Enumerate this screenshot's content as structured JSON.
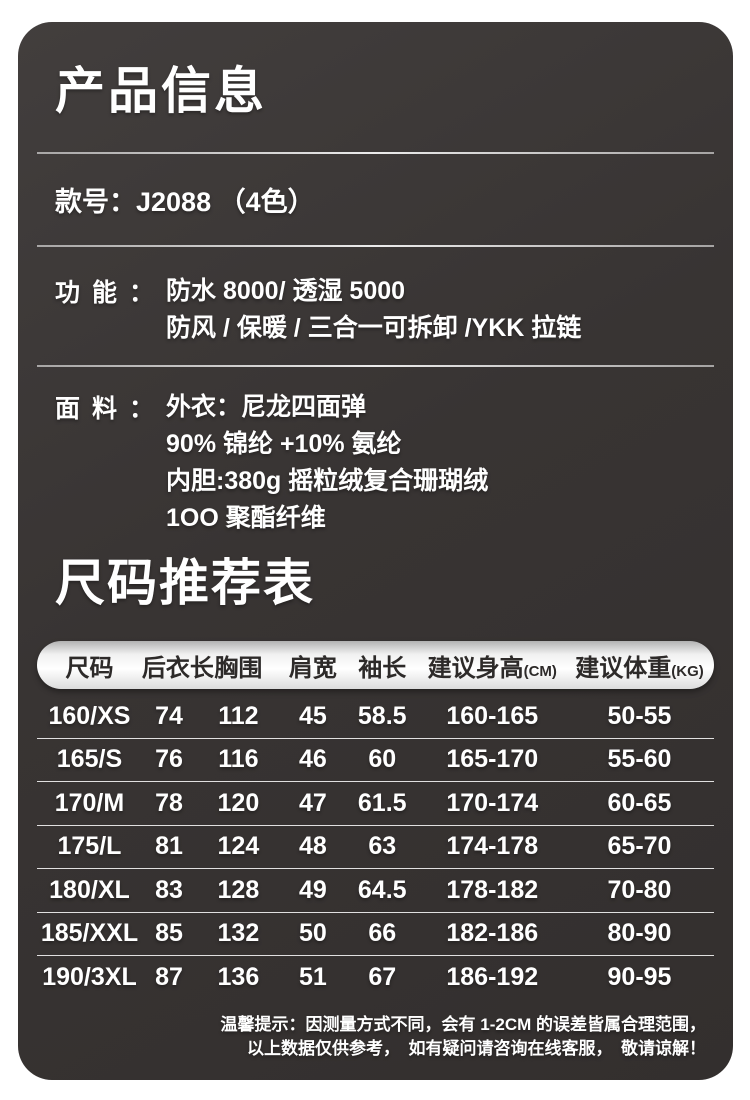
{
  "title": "产品信息",
  "style_line": "款号：J2088 （4色）",
  "features": {
    "label": "功能：",
    "lines": [
      "防水 8000/ 透湿 5000",
      "防风 / 保暖 / 三合一可拆卸 /YKK 拉链"
    ]
  },
  "fabric": {
    "label": "面料：",
    "lines": [
      "外衣：尼龙四面弹",
      "90% 锦纶 +10% 氨纶",
      "内胆:380g 摇粒绒复合珊瑚绒",
      "1OO 聚酯纤维"
    ]
  },
  "table": {
    "title": "尺码推荐表",
    "headers": [
      {
        "text": "尺码",
        "unit": ""
      },
      {
        "text": "后衣长",
        "unit": ""
      },
      {
        "text": "胸围",
        "unit": ""
      },
      {
        "text": "肩宽",
        "unit": ""
      },
      {
        "text": "袖长",
        "unit": ""
      },
      {
        "text": "建议身高",
        "unit": "(CM)"
      },
      {
        "text": "建议体重",
        "unit": "(KG)"
      }
    ],
    "rows": [
      [
        "160/XS",
        "74",
        "112",
        "45",
        "58.5",
        "160-165",
        "50-55"
      ],
      [
        "165/S",
        "76",
        "116",
        "46",
        "60",
        "165-170",
        "55-60"
      ],
      [
        "170/M",
        "78",
        "120",
        "47",
        "61.5",
        "170-174",
        "60-65"
      ],
      [
        "175/L",
        "81",
        "124",
        "48",
        "63",
        "174-178",
        "65-70"
      ],
      [
        "180/XL",
        "83",
        "128",
        "49",
        "64.5",
        "178-182",
        "70-80"
      ],
      [
        "185/XXL",
        "85",
        "132",
        "50",
        "66",
        "182-186",
        "80-90"
      ],
      [
        "190/3XL",
        "87",
        "136",
        "51",
        "67",
        "186-192",
        "90-95"
      ]
    ]
  },
  "note": {
    "lines": [
      "温馨提示：因测量方式不同，会有 1-2CM 的误差皆属合理范围，",
      "以上数据仅供参考，　如有疑问请咨询在线客服，　敬请谅解！"
    ]
  },
  "colors": {
    "card_bg": "#383433",
    "text": "#ffffff",
    "header_pill_text": "#2d2a29",
    "divider": "#d8d5d4"
  }
}
